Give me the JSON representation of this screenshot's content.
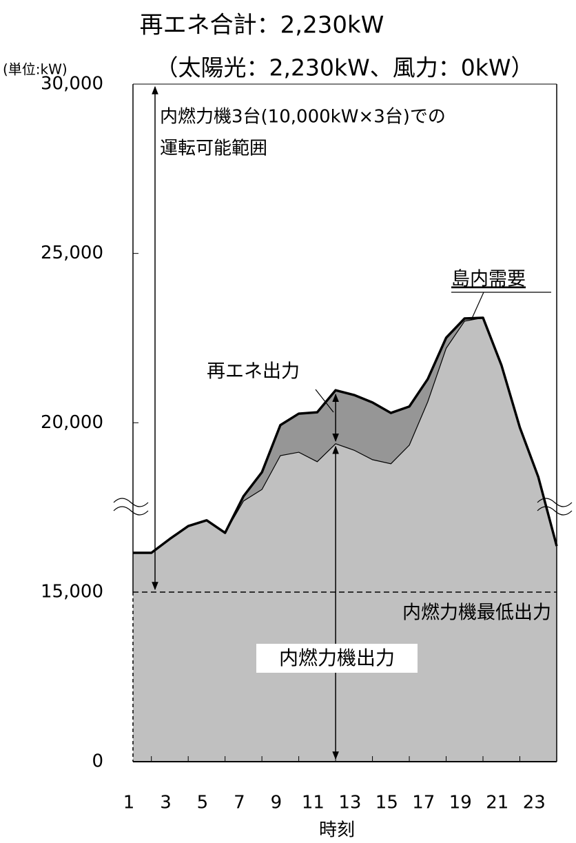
{
  "chart_data": {
    "type": "area",
    "title": [
      "再エネ合計：2,230kW",
      "（太陽光：2,230kW、風力：0kW）"
    ],
    "unit_label": "(単位:kW)",
    "xlabel": "時刻",
    "x": [
      1,
      2,
      3,
      4,
      5,
      6,
      7,
      8,
      9,
      10,
      11,
      12,
      13,
      14,
      15,
      16,
      17,
      18,
      19,
      20,
      21,
      22,
      23,
      24
    ],
    "xlim": [
      1,
      24
    ],
    "xticks": [
      1,
      3,
      5,
      7,
      9,
      11,
      13,
      15,
      17,
      19,
      21,
      23
    ],
    "ylim": [
      0,
      30000
    ],
    "yticks": [
      0,
      {
        "value": 15000,
        "label": "15,000"
      },
      {
        "value": 20000,
        "label": "20,000"
      },
      {
        "value": 25000,
        "label": "25,000"
      },
      {
        "value": 30000,
        "label": "30,000"
      }
    ],
    "y_axis_break": true,
    "series": [
      {
        "name": "島内需要",
        "color": "#969696",
        "values": [
          16160,
          16160,
          16570,
          16950,
          17120,
          16750,
          17830,
          18540,
          19930,
          20270,
          20310,
          20960,
          20820,
          20600,
          20290,
          20480,
          21290,
          22510,
          23080,
          23100,
          21700,
          19860,
          18400,
          16360
        ]
      },
      {
        "name": "内燃力機出力",
        "color": "#c0c0c0",
        "values": [
          16160,
          16160,
          16570,
          16950,
          17120,
          16750,
          17690,
          18030,
          19030,
          19130,
          18850,
          19380,
          19190,
          18910,
          18790,
          19340,
          20620,
          22200,
          23000,
          23100,
          21700,
          19860,
          18400,
          16360
        ]
      }
    ],
    "renewable_label": "再エネ出力",
    "min_output": 15000,
    "min_output_label": "内燃力機最低出力",
    "range_label": [
      "内燃力機3台(10,000kW×3台)での",
      "運転可能範囲"
    ]
  }
}
